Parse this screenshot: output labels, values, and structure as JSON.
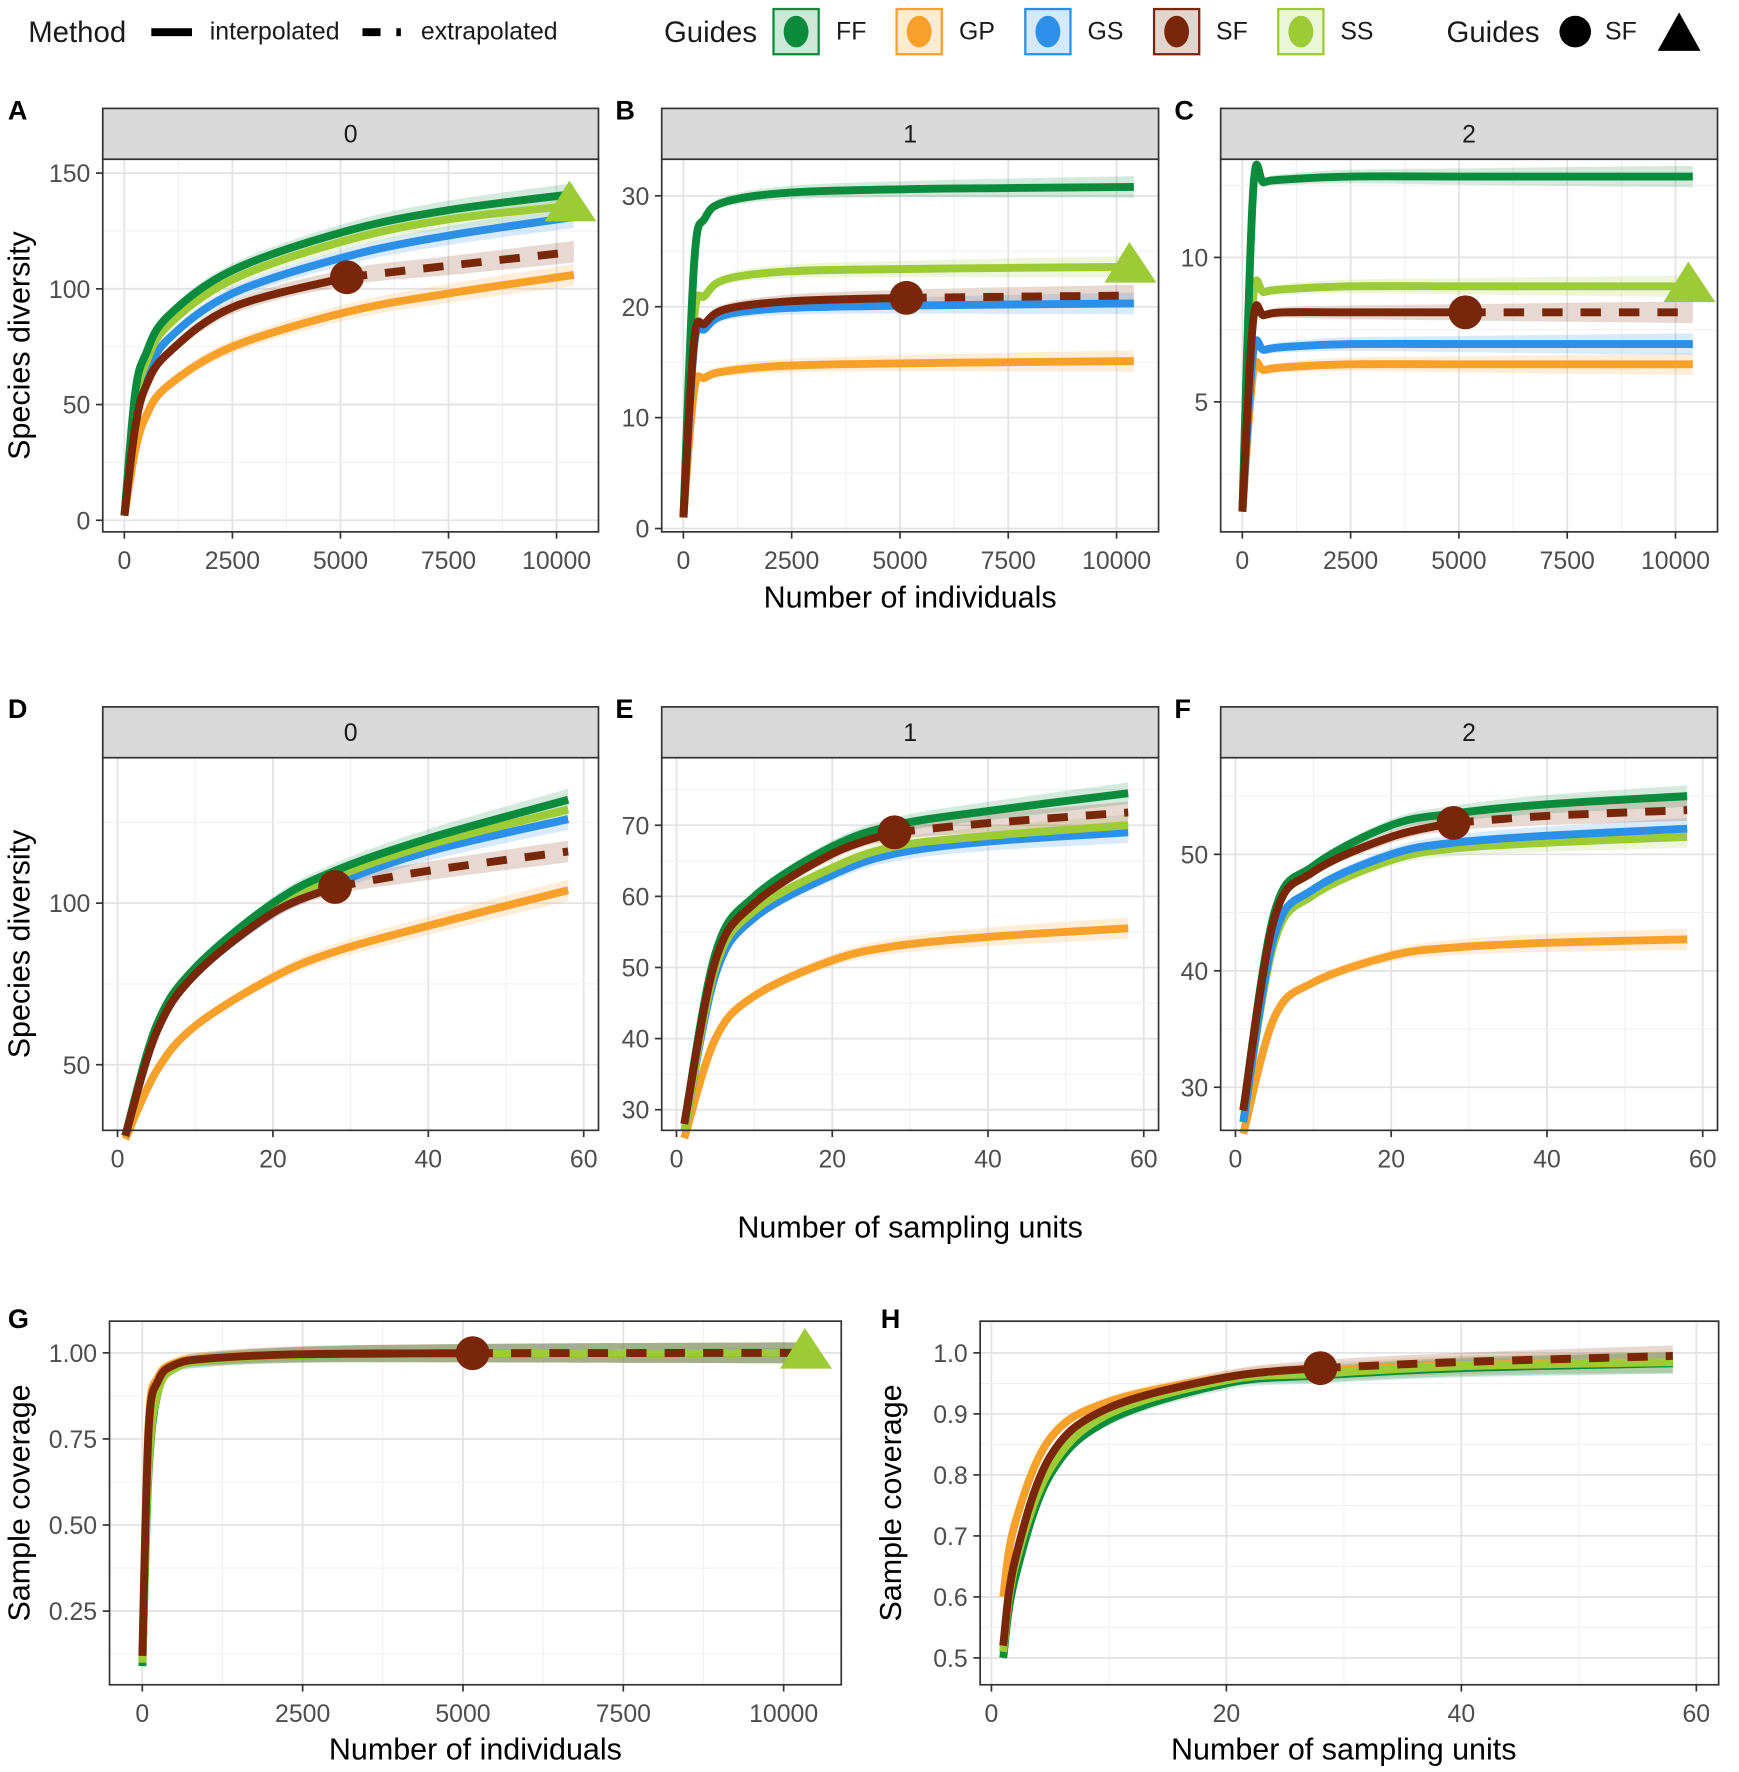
{
  "legend": {
    "method_title": "Method",
    "interpolated": "interpolated",
    "extrapolated": "extrapolated",
    "guides_title": "Guides",
    "guides": [
      {
        "name": "FF",
        "color": "#0b8c3c"
      },
      {
        "name": "GP",
        "color": "#f7a12b"
      },
      {
        "name": "GS",
        "color": "#2c90e8"
      },
      {
        "name": "SF",
        "color": "#7a2608"
      },
      {
        "name": "SS",
        "color": "#9ccb36"
      }
    ],
    "shape_title": "Guides",
    "shape_label": "SF"
  },
  "chart_data": [
    {
      "id": "A",
      "type": "line",
      "strip": "0",
      "xlabel": "",
      "ylabel": "Species diversity",
      "xlim": [
        -500,
        10970
      ],
      "ylim": [
        -5,
        156
      ],
      "xticks": [
        0,
        2500,
        5000,
        7500,
        10000
      ],
      "xtick_labels": [
        "0",
        "2500",
        "5000",
        "7500",
        "10000"
      ],
      "yticks": [
        0,
        50,
        100,
        150
      ],
      "ytick_labels": [
        "0",
        "50",
        "100",
        "150"
      ],
      "x": [
        1,
        250,
        500,
        1000,
        2500,
        5150,
        7500,
        10400
      ],
      "series": [
        {
          "name": "GP",
          "y": [
            2,
            30,
            45,
            58,
            75,
            90,
            98,
            106
          ]
        },
        {
          "name": "GS",
          "y": [
            2,
            45,
            62,
            78,
            98,
            114,
            123,
            131
          ]
        },
        {
          "name": "SS",
          "y": [
            2,
            50,
            68,
            84,
            104,
            121,
            130,
            136
          ]
        },
        {
          "name": "FF",
          "y": [
            2,
            55,
            72,
            88,
            108,
            125,
            134,
            141
          ]
        },
        {
          "name": "SF",
          "y": [
            2,
            40,
            58,
            72,
            92,
            105,
            110,
            116
          ],
          "observed_index": 5
        }
      ],
      "markers": [
        {
          "series": "SF",
          "shape": "circle",
          "index": 5
        },
        {
          "series": "SS",
          "shape": "triangle",
          "index": 7
        }
      ]
    },
    {
      "id": "B",
      "type": "line",
      "strip": "1",
      "xlabel": "Number of individuals",
      "ylabel": "",
      "xlim": [
        -500,
        10970
      ],
      "ylim": [
        -0.3,
        33.3
      ],
      "xticks": [
        0,
        2500,
        5000,
        7500,
        10000
      ],
      "xtick_labels": [
        "0",
        "2500",
        "5000",
        "7500",
        "10000"
      ],
      "yticks": [
        0,
        10,
        20,
        30
      ],
      "ytick_labels": [
        "0",
        "10",
        "20",
        "30"
      ],
      "x": [
        1,
        250,
        500,
        1000,
        2500,
        5150,
        7500,
        10400
      ],
      "series": [
        {
          "name": "GP",
          "y": [
            1,
            12.5,
            13.6,
            14.2,
            14.7,
            14.9,
            15,
            15.1
          ]
        },
        {
          "name": "GS",
          "y": [
            1,
            16.5,
            18,
            19.3,
            19.9,
            20.1,
            20.2,
            20.3
          ]
        },
        {
          "name": "SS",
          "y": [
            1,
            19,
            21,
            22.5,
            23.2,
            23.4,
            23.5,
            23.6
          ]
        },
        {
          "name": "FF",
          "y": [
            1,
            24,
            28,
            29.5,
            30.3,
            30.6,
            30.7,
            30.8
          ]
        },
        {
          "name": "SF",
          "y": [
            1,
            17,
            18.5,
            19.8,
            20.5,
            20.8,
            20.9,
            21
          ],
          "observed_index": 5
        }
      ],
      "markers": [
        {
          "series": "SF",
          "shape": "circle",
          "index": 5
        },
        {
          "series": "SS",
          "shape": "triangle",
          "index": 7
        }
      ]
    },
    {
      "id": "C",
      "type": "line",
      "strip": "2",
      "xlabel": "",
      "ylabel": "",
      "xlim": [
        -500,
        10970
      ],
      "ylim": [
        0.5,
        13.4
      ],
      "xticks": [
        0,
        2500,
        5000,
        7500,
        10000
      ],
      "xtick_labels": [
        "0",
        "2500",
        "5000",
        "7500",
        "10000"
      ],
      "yticks": [
        5,
        10
      ],
      "ytick_labels": [
        "5",
        "10"
      ],
      "x": [
        1,
        250,
        500,
        1000,
        2500,
        5150,
        7500,
        10400
      ],
      "series": [
        {
          "name": "GP",
          "y": [
            1.2,
            6.0,
            6.1,
            6.2,
            6.3,
            6.3,
            6.3,
            6.3
          ]
        },
        {
          "name": "GS",
          "y": [
            1.2,
            6.7,
            6.8,
            6.9,
            7,
            7,
            7,
            7
          ]
        },
        {
          "name": "SS",
          "y": [
            1.2,
            8.6,
            8.8,
            8.9,
            9,
            9,
            9,
            9
          ]
        },
        {
          "name": "FF",
          "y": [
            1.2,
            12.3,
            12.6,
            12.7,
            12.8,
            12.8,
            12.8,
            12.8
          ]
        },
        {
          "name": "SF",
          "y": [
            1.2,
            7.8,
            8,
            8.1,
            8.1,
            8.1,
            8.1,
            8.1
          ],
          "observed_index": 5
        }
      ],
      "markers": [
        {
          "series": "SF",
          "shape": "circle",
          "index": 5
        },
        {
          "series": "SS",
          "shape": "triangle",
          "index": 7
        }
      ]
    },
    {
      "id": "D",
      "type": "line",
      "strip": "0",
      "xlabel": "",
      "ylabel": "Species diversity",
      "xlim": [
        -1.9,
        61.9
      ],
      "ylim": [
        29.7,
        145
      ],
      "xticks": [
        0,
        20,
        40,
        60
      ],
      "xtick_labels": [
        "0",
        "20",
        "40",
        "60"
      ],
      "yticks": [
        50,
        100
      ],
      "ytick_labels": [
        "50",
        "100"
      ],
      "x": [
        1,
        5,
        10,
        20,
        28,
        40,
        58
      ],
      "series": [
        {
          "name": "GP",
          "y": [
            27,
            48,
            62,
            77,
            85,
            93,
            104
          ]
        },
        {
          "name": "GS",
          "y": [
            28,
            60,
            78,
            97,
            106,
            116,
            126
          ]
        },
        {
          "name": "SS",
          "y": [
            28,
            61,
            79,
            98,
            108,
            118,
            129
          ]
        },
        {
          "name": "FF",
          "y": [
            28,
            62,
            80,
            100,
            110,
            120,
            132
          ]
        },
        {
          "name": "SF",
          "y": [
            28,
            60,
            78,
            97,
            105,
            110,
            116
          ],
          "observed_index": 4
        }
      ],
      "markers": [
        {
          "series": "SF",
          "shape": "circle",
          "index": 4
        }
      ]
    },
    {
      "id": "E",
      "type": "line",
      "strip": "1",
      "xlabel": "Number of sampling units",
      "ylabel": "",
      "xlim": [
        -1.9,
        61.9
      ],
      "ylim": [
        27.1,
        79.5
      ],
      "xticks": [
        0,
        20,
        40,
        60
      ],
      "xtick_labels": [
        "0",
        "20",
        "40",
        "60"
      ],
      "yticks": [
        30,
        40,
        50,
        60,
        70
      ],
      "ytick_labels": [
        "30",
        "40",
        "50",
        "60",
        "70"
      ],
      "x": [
        1,
        5,
        10,
        20,
        28,
        40,
        58
      ],
      "series": [
        {
          "name": "GP",
          "y": [
            26,
            40,
            46,
            51,
            53,
            54.3,
            55.5
          ]
        },
        {
          "name": "GS",
          "y": [
            27,
            49,
            57,
            63,
            66,
            67.7,
            69
          ]
        },
        {
          "name": "SS",
          "y": [
            27,
            50,
            58,
            64,
            67,
            68.5,
            70
          ]
        },
        {
          "name": "FF",
          "y": [
            28,
            52,
            60,
            67,
            70,
            72,
            74.5
          ]
        },
        {
          "name": "SF",
          "y": [
            28,
            51,
            59,
            66,
            69,
            70.3,
            71.8
          ],
          "observed_index": 4
        }
      ],
      "markers": [
        {
          "series": "SF",
          "shape": "circle",
          "index": 4
        }
      ]
    },
    {
      "id": "F",
      "type": "line",
      "strip": "2",
      "xlabel": "",
      "ylabel": "",
      "xlim": [
        -1.9,
        61.9
      ],
      "ylim": [
        26.3,
        58.3
      ],
      "xticks": [
        0,
        20,
        40,
        60
      ],
      "xtick_labels": [
        "0",
        "20",
        "40",
        "60"
      ],
      "yticks": [
        30,
        40,
        50
      ],
      "ytick_labels": [
        "30",
        "40",
        "50"
      ],
      "x": [
        1,
        5,
        10,
        20,
        28,
        40,
        58
      ],
      "series": [
        {
          "name": "GP",
          "y": [
            26,
            36,
            39,
            41.3,
            42,
            42.4,
            42.7
          ]
        },
        {
          "name": "SS",
          "y": [
            27,
            42.5,
            46.5,
            49.5,
            50.5,
            51,
            51.5
          ]
        },
        {
          "name": "GS",
          "y": [
            27,
            43,
            47,
            50,
            51,
            51.6,
            52.2
          ]
        },
        {
          "name": "FF",
          "y": [
            28,
            45,
            49,
            52.5,
            53.5,
            54.3,
            55
          ]
        },
        {
          "name": "SF",
          "y": [
            28,
            44.5,
            48.5,
            51.5,
            52.7,
            53.3,
            53.8
          ],
          "observed_index": 4
        }
      ],
      "markers": [
        {
          "series": "SF",
          "shape": "circle",
          "index": 4
        }
      ]
    },
    {
      "id": "G",
      "type": "line",
      "strip": "",
      "xlabel": "Number of individuals",
      "ylabel": "Sample coverage",
      "xlim": [
        -511,
        10898
      ],
      "ylim": [
        0.036,
        1.092
      ],
      "xticks": [
        0,
        2500,
        5000,
        7500,
        10000
      ],
      "xtick_labels": [
        "0",
        "2500",
        "5000",
        "7500",
        "10000"
      ],
      "yticks": [
        0.25,
        0.5,
        0.75,
        1.0
      ],
      "ytick_labels": [
        "0.25",
        "0.50",
        "0.75",
        "1.00"
      ],
      "x": [
        1,
        100,
        250,
        500,
        1000,
        2500,
        5150,
        10400
      ],
      "series": [
        {
          "name": "GP",
          "y": [
            0.12,
            0.8,
            0.93,
            0.97,
            0.985,
            0.996,
            0.999,
            1.0
          ]
        },
        {
          "name": "GS",
          "y": [
            0.1,
            0.7,
            0.9,
            0.96,
            0.98,
            0.995,
            0.999,
            1.0
          ]
        },
        {
          "name": "FF",
          "y": [
            0.09,
            0.66,
            0.89,
            0.955,
            0.978,
            0.994,
            0.999,
            1.0
          ]
        },
        {
          "name": "SS",
          "y": [
            0.1,
            0.68,
            0.89,
            0.955,
            0.978,
            0.994,
            0.999,
            1.0
          ]
        },
        {
          "name": "SF",
          "y": [
            0.12,
            0.78,
            0.92,
            0.965,
            0.983,
            0.996,
            0.999,
            1.0
          ],
          "observed_index": 6
        }
      ],
      "markers": [
        {
          "series": "SF",
          "shape": "circle",
          "index": 6
        },
        {
          "series": "SS",
          "shape": "triangle",
          "index": 7
        }
      ]
    },
    {
      "id": "H",
      "type": "line",
      "strip": "",
      "xlabel": "Number of sampling units",
      "ylabel": "Sample coverage",
      "xlim": [
        -0.96,
        61.9
      ],
      "ylim": [
        0.456,
        1.052
      ],
      "xticks": [
        0,
        20,
        40,
        60
      ],
      "xtick_labels": [
        "0",
        "20",
        "40",
        "60"
      ],
      "yticks": [
        0.5,
        0.6,
        0.7,
        0.8,
        0.9,
        1.0
      ],
      "ytick_labels": [
        "0.5",
        "0.6",
        "0.7",
        "0.8",
        "0.9",
        "1.0"
      ],
      "x": [
        1,
        2,
        5,
        10,
        20,
        28,
        40,
        58
      ],
      "series": [
        {
          "name": "GP",
          "y": [
            0.6,
            0.72,
            0.86,
            0.92,
            0.96,
            0.97,
            0.98,
            0.985
          ]
        },
        {
          "name": "GS",
          "y": [
            0.51,
            0.65,
            0.81,
            0.9,
            0.955,
            0.965,
            0.977,
            0.984
          ]
        },
        {
          "name": "FF",
          "y": [
            0.5,
            0.63,
            0.8,
            0.89,
            0.95,
            0.963,
            0.975,
            0.983
          ]
        },
        {
          "name": "SS",
          "y": [
            0.51,
            0.65,
            0.81,
            0.9,
            0.955,
            0.966,
            0.978,
            0.985
          ]
        },
        {
          "name": "SF",
          "y": [
            0.52,
            0.66,
            0.83,
            0.91,
            0.96,
            0.975,
            0.985,
            0.995
          ],
          "observed_index": 5
        }
      ],
      "markers": [
        {
          "series": "SF",
          "shape": "circle",
          "index": 5
        }
      ]
    }
  ]
}
